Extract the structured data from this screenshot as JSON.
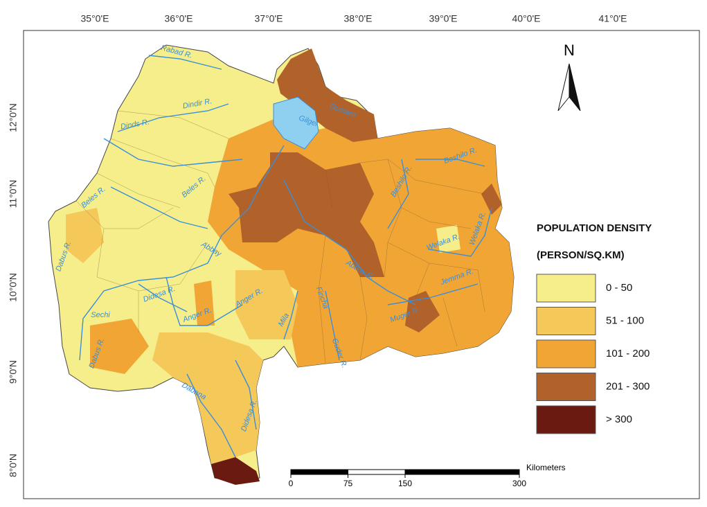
{
  "longitude_labels": [
    "35°0'E",
    "36°0'E",
    "37°0'E",
    "38°0'E",
    "39°0'E",
    "40°0'E",
    "41°0'E"
  ],
  "latitude_labels": [
    "12°0'N",
    "11°0'N",
    "10°0'N",
    "9°0'N",
    "8°0'N"
  ],
  "north_label": "N",
  "legend": {
    "title": "POPULATION DENSITY",
    "subtitle": "(PERSON/SQ.KM)",
    "classes": [
      {
        "label": "0 - 50",
        "color": "#f5ee8a"
      },
      {
        "label": "51 - 100",
        "color": "#f5c85a"
      },
      {
        "label": "101 - 200",
        "color": "#f0a535"
      },
      {
        "label": "201 - 300",
        "color": "#b0622a"
      },
      {
        "label": "> 300",
        "color": "#6b1a12"
      }
    ]
  },
  "scale_bar": {
    "unit": "Kilometers",
    "ticks": [
      0,
      75,
      150,
      300
    ]
  },
  "rivers": [
    "Rabad R.",
    "Dindir R.",
    "Dinds R.",
    "Beles R.",
    "Beles R.",
    "Dabus R.",
    "Abbay",
    "Didesa R.",
    "Anger R.",
    "Anger R.",
    "Sechi",
    "Dabus R.",
    "Dabana",
    "Didesa R.",
    "Mila",
    "Fincha",
    "Guder R.",
    "Abbay R.",
    "Muger R.",
    "Jemma R.",
    "Welaka R.",
    "Welaka R.",
    "Beshilo R.",
    "Beshilo R.",
    "Gilgel",
    "Gumara"
  ]
}
